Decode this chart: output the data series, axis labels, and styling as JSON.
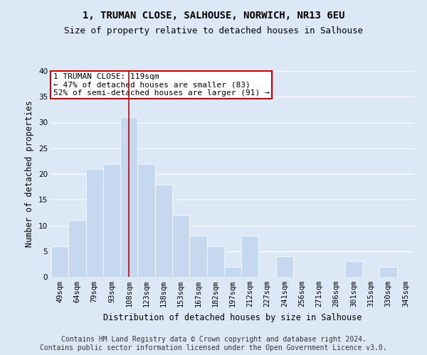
{
  "title": "1, TRUMAN CLOSE, SALHOUSE, NORWICH, NR13 6EU",
  "subtitle": "Size of property relative to detached houses in Salhouse",
  "xlabel": "Distribution of detached houses by size in Salhouse",
  "ylabel": "Number of detached properties",
  "categories": [
    "49sqm",
    "64sqm",
    "79sqm",
    "93sqm",
    "108sqm",
    "123sqm",
    "138sqm",
    "153sqm",
    "167sqm",
    "182sqm",
    "197sqm",
    "212sqm",
    "227sqm",
    "241sqm",
    "256sqm",
    "271sqm",
    "286sqm",
    "301sqm",
    "315sqm",
    "330sqm",
    "345sqm"
  ],
  "values": [
    6,
    11,
    21,
    22,
    31,
    22,
    18,
    12,
    8,
    6,
    2,
    8,
    0,
    4,
    0,
    0,
    0,
    3,
    0,
    2,
    0
  ],
  "bar_color": "#c5d8f0",
  "vline_color": "#cc0000",
  "vline_x": 4,
  "annotation_text": "1 TRUMAN CLOSE: 119sqm\n← 47% of detached houses are smaller (83)\n52% of semi-detached houses are larger (91) →",
  "annotation_box_color": "#ffffff",
  "annotation_box_edge_color": "#cc0000",
  "ylim": [
    0,
    40
  ],
  "yticks": [
    0,
    5,
    10,
    15,
    20,
    25,
    30,
    35,
    40
  ],
  "bg_color": "#dce8f5",
  "plot_bg_color": "#dce8f5",
  "footer_line1": "Contains HM Land Registry data © Crown copyright and database right 2024.",
  "footer_line2": "Contains public sector information licensed under the Open Government Licence v3.0.",
  "title_fontsize": 10,
  "subtitle_fontsize": 9,
  "xlabel_fontsize": 8.5,
  "ylabel_fontsize": 8.5,
  "tick_fontsize": 7.5,
  "annotation_fontsize": 8,
  "footer_fontsize": 7
}
